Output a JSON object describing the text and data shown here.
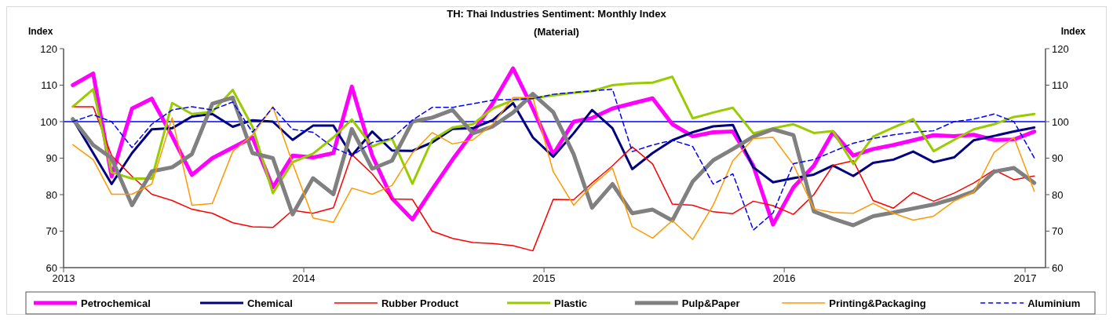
{
  "chart_data": {
    "type": "line",
    "title": "TH: Thai Industries Sentiment: Monthly Index",
    "subtitle": "(Material)",
    "ylabel": "Index",
    "y2label": "Index",
    "x": [
      "2013-01-15",
      "2013-02-15",
      "2013-03-15",
      "2013-04-15",
      "2013-05-15",
      "2013-06-15",
      "2013-07-15",
      "2013-08-15",
      "2013-09-15",
      "2013-10-15",
      "2013-11-15",
      "2013-12-15",
      "2014-01-15",
      "2014-02-15",
      "2014-03-15",
      "2014-04-15",
      "2014-05-15",
      "2014-06-15",
      "2014-07-15",
      "2014-08-15",
      "2014-09-15",
      "2014-10-15",
      "2014-11-15",
      "2014-12-15",
      "2015-01-15",
      "2015-02-15",
      "2015-03-15",
      "2015-04-15",
      "2015-05-15",
      "2015-06-15",
      "2015-07-15",
      "2015-08-15",
      "2015-09-15",
      "2015-10-15",
      "2015-11-15",
      "2015-12-15",
      "2016-01-15",
      "2016-02-15",
      "2016-03-15",
      "2016-04-15",
      "2016-05-15",
      "2016-06-15",
      "2016-07-15",
      "2016-08-15",
      "2016-09-15",
      "2016-10-15",
      "2016-11-15",
      "2016-12-15",
      "2017-01-15"
    ],
    "series": [
      {
        "name": "Petrochemical",
        "color": "#ff00ff",
        "values": [
          110,
          113.2,
          85,
          103.6,
          106.3,
          96,
          85.4,
          90,
          92.9,
          95.7,
          82,
          90.7,
          90.2,
          91.4,
          109.6,
          90.7,
          79,
          73.2,
          81.4,
          89.6,
          97.1,
          105,
          114.6,
          103.6,
          91,
          100,
          101,
          103.6,
          105,
          106.4,
          99.3,
          96,
          97.1,
          97.3,
          87.9,
          71.8,
          82,
          87.9,
          97.1,
          90.7,
          92.5,
          93.6,
          94.9,
          96.3,
          96,
          96.4,
          95,
          95.1,
          97.3
        ]
      },
      {
        "name": "Chemical",
        "color": "#000080",
        "values": [
          100.7,
          91.4,
          82.9,
          91.4,
          97.9,
          98.2,
          101.4,
          102.1,
          98.6,
          100.4,
          100,
          95,
          98.9,
          98.9,
          90.7,
          97.3,
          92.1,
          92,
          94.3,
          98,
          98.2,
          100.4,
          105.1,
          95.7,
          90.4,
          96.8,
          103.2,
          98.2,
          87,
          91.4,
          94.9,
          97.1,
          98.7,
          99.1,
          87.5,
          83.4,
          84.5,
          85.5,
          88,
          85.1,
          88.7,
          89.6,
          91.8,
          88.9,
          90.2,
          94.9,
          96.1,
          97.3,
          98.4
        ]
      },
      {
        "name": "Rubber Product",
        "color": "#ff0000",
        "values": [
          104.1,
          104.1,
          90.7,
          85,
          80.1,
          78.4,
          76,
          74.9,
          72.3,
          71.2,
          71,
          75.7,
          74.9,
          76.4,
          91,
          85.7,
          78.8,
          78.7,
          70,
          68,
          66.9,
          66.6,
          66,
          64.6,
          78.7,
          78.6,
          83.2,
          87.9,
          93.1,
          88.4,
          77.4,
          77.1,
          75.3,
          74.8,
          78.2,
          77,
          74.6,
          80,
          88,
          89.3,
          78.4,
          76.3,
          80.6,
          78.2,
          80.4,
          83.2,
          86.8,
          84.1,
          85.1
        ]
      },
      {
        "name": "Plastic",
        "color": "#99cc00",
        "values": [
          104.1,
          108.9,
          86.1,
          84.4,
          84.4,
          105.1,
          102.1,
          102.7,
          108.7,
          98.6,
          80.4,
          88.9,
          91.2,
          95.7,
          100.6,
          93.2,
          95.4,
          83,
          95,
          98.4,
          99.3,
          103.6,
          105.9,
          106.4,
          107.2,
          107.9,
          108.4,
          110,
          110.5,
          110.7,
          112.3,
          100.9,
          102.5,
          103.8,
          96.8,
          98.2,
          99.3,
          96.9,
          97.4,
          88.4,
          95.9,
          98.4,
          100.7,
          91.9,
          95,
          97.9,
          99.3,
          101.3,
          102.1
        ]
      },
      {
        "name": "Pulp&Paper",
        "color": "#808080",
        "values": [
          100.7,
          93.6,
          90,
          77.1,
          86.4,
          87.5,
          91.1,
          104.9,
          106.6,
          91.4,
          90,
          74.6,
          84.5,
          80.1,
          98,
          87.1,
          89.3,
          100,
          101.1,
          103.2,
          96.8,
          98.7,
          102.5,
          107.6,
          102.6,
          91.1,
          76.4,
          82.9,
          74.9,
          75.9,
          72.9,
          83.6,
          89.4,
          92.5,
          95.9,
          97.9,
          96.3,
          75.4,
          73.4,
          71.6,
          74.1,
          75.1,
          76.2,
          77.3,
          78.9,
          80.9,
          86.3,
          87.3,
          83.2
        ]
      },
      {
        "name": "Printing&Packaging",
        "color": "#ff9900",
        "values": [
          93.7,
          89.6,
          80.1,
          80.1,
          82.9,
          101.1,
          77.1,
          77.6,
          91.8,
          96.4,
          104.1,
          88.6,
          73.6,
          72.4,
          81.8,
          80.1,
          82.5,
          91.4,
          97,
          93.9,
          95,
          99.3,
          106.6,
          106.6,
          86.3,
          77.1,
          82.5,
          87.3,
          71.2,
          68.1,
          72.9,
          67.7,
          77.1,
          89.3,
          95.4,
          95.7,
          88.2,
          76.1,
          75.1,
          74.9,
          77.6,
          74.9,
          73,
          74.1,
          78.2,
          80.7,
          91.6,
          95.7,
          80.9
        ]
      },
      {
        "name": "Aluminium",
        "color": "#0000ff",
        "line_style": "dashed",
        "values": [
          100,
          101.9,
          100,
          92.9,
          99.3,
          103.2,
          104.1,
          103.2,
          105.4,
          97.1,
          103.9,
          97.9,
          97.1,
          92.9,
          90.7,
          94.3,
          95.4,
          100.4,
          103.9,
          103.9,
          104.9,
          105.9,
          106.1,
          106.3,
          107.5,
          108,
          108.4,
          108.9,
          91.8,
          93.6,
          94.9,
          93.2,
          82.9,
          85.7,
          70.3,
          75,
          88.5,
          89.6,
          91.8,
          94.1,
          95.4,
          96.4,
          97.1,
          97.5,
          100,
          100.7,
          102.1,
          100,
          90.1
        ]
      }
    ],
    "xlim": [
      "2013-01-01",
      "2017-02-01"
    ],
    "xticks": [
      "2013",
      "2014",
      "2015",
      "2016",
      "2017"
    ],
    "ylim": [
      60,
      120
    ],
    "yticks": [
      60,
      70,
      80,
      90,
      100,
      110,
      120
    ],
    "y2lim": [
      60,
      120
    ],
    "y2ticks": [
      60,
      70,
      80,
      90,
      100,
      110,
      120
    ],
    "ref_lines": [
      {
        "axis": "y",
        "value": 100,
        "color": "#0000ff"
      }
    ],
    "grid": false,
    "legend": "bottom",
    "line_style": "solid"
  }
}
